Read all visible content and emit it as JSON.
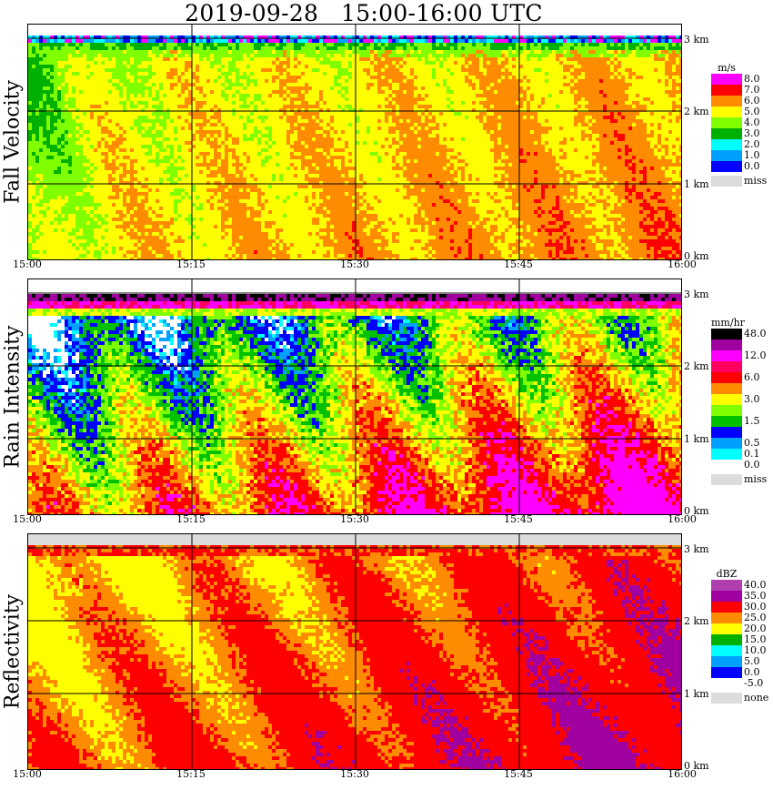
{
  "title": "2019-09-28   15:00-16:00 UTC",
  "x_ticks": [
    "15:00",
    "15:15",
    "15:30",
    "15:45",
    "16:00"
  ],
  "height_ticks": [
    "3 km",
    "2 km",
    "1 km",
    "0 km"
  ],
  "chart_data": [
    {
      "type": "heatmap",
      "title": "Fall Velocity",
      "unit": "m/s",
      "legend": [
        {
          "label": "8.0",
          "color": "#ff00ff"
        },
        {
          "label": "7.0",
          "color": "#ff0000"
        },
        {
          "label": "6.0",
          "color": "#ff8c00"
        },
        {
          "label": "5.0",
          "color": "#ffff00"
        },
        {
          "label": "4.0",
          "color": "#80ff00"
        },
        {
          "label": "3.0",
          "color": "#00b000"
        },
        {
          "label": "2.0",
          "color": "#00ffff"
        },
        {
          "label": "1.0",
          "color": "#00a0ff"
        },
        {
          "label": "0.0",
          "color": "#0000ff"
        },
        {
          "label": "miss",
          "color": "#dcdcdc"
        }
      ],
      "x_range": [
        "15:00",
        "16:00"
      ],
      "y_range_km": [
        0,
        3.2
      ]
    },
    {
      "type": "heatmap",
      "title": "Rain Intensity",
      "unit": "mm/hr",
      "legend": [
        {
          "label": "48.0",
          "color": "#000000"
        },
        {
          "label": "",
          "color": "#a000a0"
        },
        {
          "label": "12.0",
          "color": "#ff00ff"
        },
        {
          "label": "",
          "color": "#ff0060"
        },
        {
          "label": "6.0",
          "color": "#ff0000"
        },
        {
          "label": "",
          "color": "#ff8c00"
        },
        {
          "label": "3.0",
          "color": "#ffff00"
        },
        {
          "label": "",
          "color": "#80ff00"
        },
        {
          "label": "1.5",
          "color": "#00c000"
        },
        {
          "label": "",
          "color": "#0000ff"
        },
        {
          "label": "0.5",
          "color": "#00a0ff"
        },
        {
          "label": "0.1",
          "color": "#00ffff"
        },
        {
          "label": "0.0",
          "color": "#ffffff"
        },
        {
          "label": "miss",
          "color": "#dcdcdc"
        }
      ],
      "x_range": [
        "15:00",
        "16:00"
      ],
      "y_range_km": [
        0,
        3.2
      ]
    },
    {
      "type": "heatmap",
      "title": "Reflectivity",
      "unit": "dBZ",
      "legend": [
        {
          "label": "40.0",
          "color": "#b040b0"
        },
        {
          "label": "35.0",
          "color": "#a000a0"
        },
        {
          "label": "30.0",
          "color": "#ff0000"
        },
        {
          "label": "25.0",
          "color": "#ff8c00"
        },
        {
          "label": "20.0",
          "color": "#ffff00"
        },
        {
          "label": "15.0",
          "color": "#00b000"
        },
        {
          "label": "10.0",
          "color": "#00ffff"
        },
        {
          "label": "5.0",
          "color": "#00a0ff"
        },
        {
          "label": "0.0",
          "color": "#0000ff"
        },
        {
          "label": "-5.0",
          "color": "#ffffff"
        },
        {
          "label": "none",
          "color": "#dcdcdc"
        }
      ],
      "x_range": [
        "15:00",
        "16:00"
      ],
      "y_range_km": [
        0,
        3.2
      ]
    }
  ]
}
